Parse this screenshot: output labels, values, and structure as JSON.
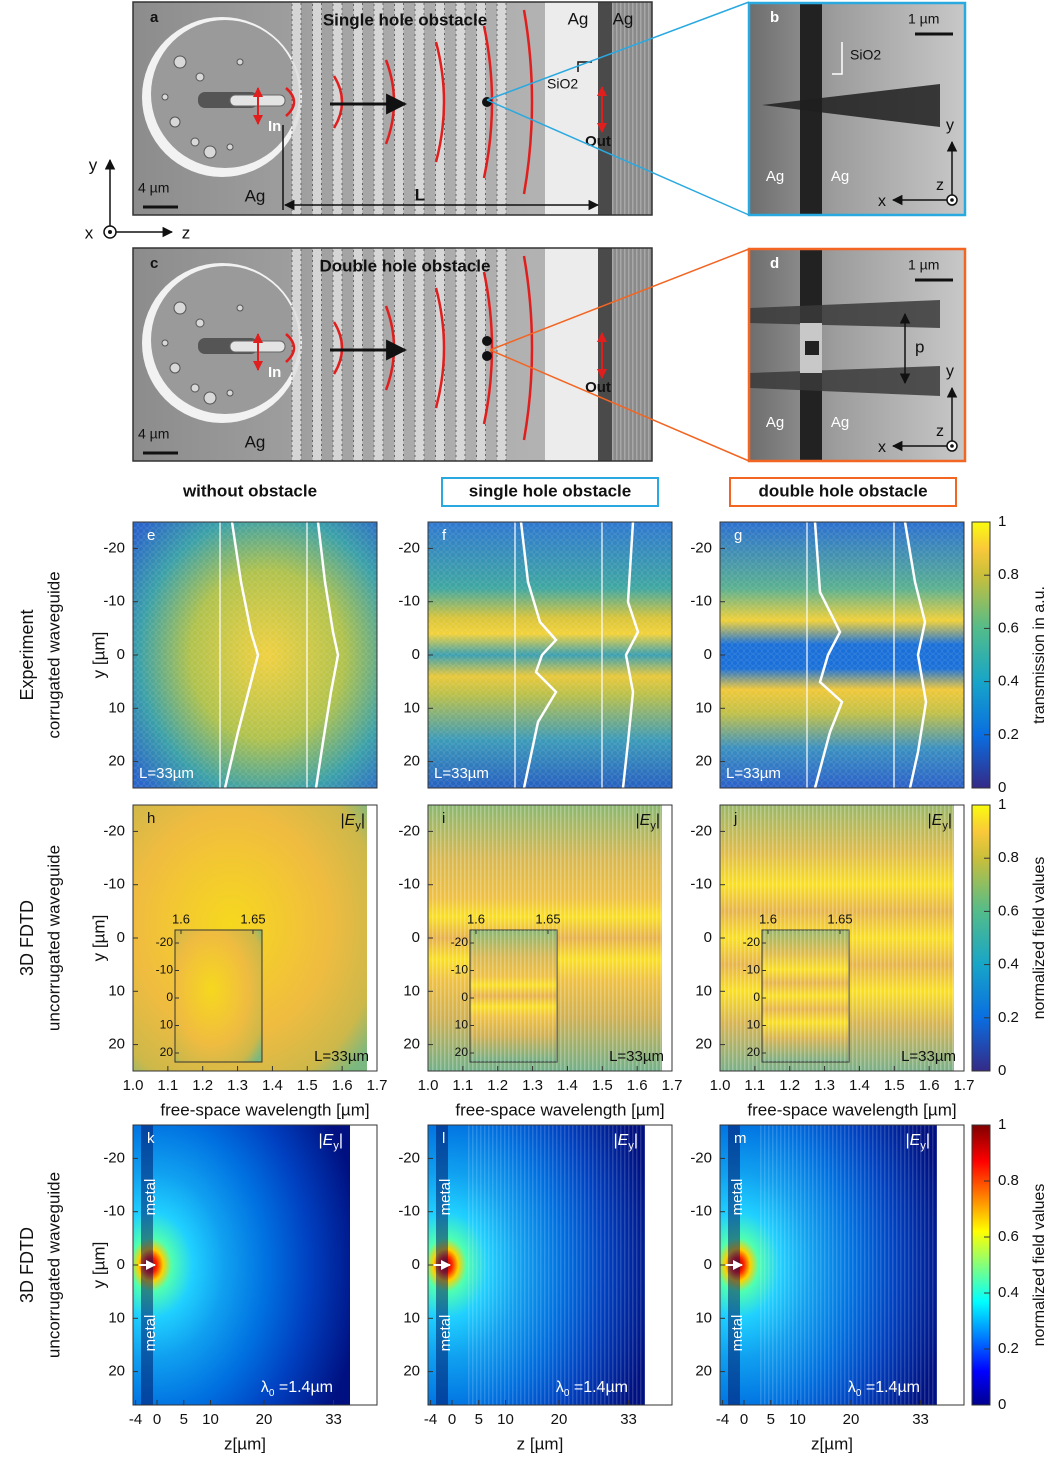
{
  "panels_top": {
    "a": {
      "label": "a",
      "title": "Single hole obstacle",
      "ag_left": "Ag",
      "ag_right": "Ag",
      "sio2": "SiO2",
      "in": "In",
      "out": "Out",
      "ag_bottom": "Ag",
      "length": "L",
      "scale": "4 µm"
    },
    "b": {
      "label": "b",
      "scale": "1 µm",
      "sio2": "SiO2",
      "ag_left": "Ag",
      "ag_right": "Ag",
      "axis_y": "y",
      "axis_z": "z",
      "axis_x": "x"
    },
    "c": {
      "label": "c",
      "title": "Double hole obstacle",
      "in": "In",
      "out": "Out",
      "ag_bottom": "Ag",
      "scale": "4 µm"
    },
    "d": {
      "label": "d",
      "scale": "1 µm",
      "period": "p",
      "ag_left": "Ag",
      "ag_right": "Ag",
      "axis_y": "y",
      "axis_z": "z",
      "axis_x": "x"
    }
  },
  "coordinate_axes": {
    "y": "y",
    "x": "x",
    "z": "z"
  },
  "column_titles": [
    "without obstacle",
    "single hole obstacle",
    "double hole obstacle"
  ],
  "rows": [
    {
      "title": "Experiment",
      "subtitle": "corrugated waveguide",
      "y_label": "y [µm]",
      "y_ticks": [
        -20,
        -10,
        0,
        10,
        20
      ],
      "panels": [
        {
          "label": "e",
          "length": "L=33µm"
        },
        {
          "label": "f",
          "length": "L=33µm"
        },
        {
          "label": "g",
          "length": "L=33µm"
        }
      ],
      "colorbar": {
        "label": "transmission in a.u.",
        "ticks": [
          0,
          0.2,
          0.4,
          0.6,
          0.8,
          1
        ]
      }
    },
    {
      "title": "3D FDTD",
      "subtitle": "uncorrugated waveguide",
      "y_label": "y [µm]",
      "y_ticks": [
        -20,
        -10,
        0,
        10,
        20
      ],
      "x_ticks": [
        {
          "value": 1,
          "label": "1.0"
        },
        1.1,
        1.2,
        1.3,
        1.4,
        1.5,
        1.6,
        1.7
      ],
      "inset": {
        "x_ticks": [
          1.6,
          1.65
        ],
        "y_ticks": [
          -20,
          -10,
          0,
          10,
          20
        ]
      },
      "panels": [
        {
          "label": "h",
          "field": [
            "|",
            "E",
            "y",
            "|"
          ],
          "length": "L=33µm",
          "x_label": "free-space wavelength [µm]"
        },
        {
          "label": "i",
          "field": [
            "|",
            "E",
            "y",
            "|"
          ],
          "length": "L=33µm",
          "x_label": "free-space wavelength [µm]"
        },
        {
          "label": "j",
          "field": [
            "|",
            "E",
            "y",
            "|"
          ],
          "length": "L=33µm",
          "x_label": "free-space wavelength [µm]"
        }
      ],
      "colorbar": {
        "label": "normalized field values",
        "ticks": [
          0,
          0.2,
          0.4,
          0.6,
          0.8,
          1
        ]
      }
    },
    {
      "title": "3D FDTD",
      "subtitle": "uncorrugated waveguide",
      "y_label": "y [µm]",
      "y_ticks": [
        -20,
        -10,
        0,
        10,
        20
      ],
      "x_ticks": [
        -4,
        0,
        5,
        10,
        20,
        33
      ],
      "panels": [
        {
          "label": "k",
          "field": [
            "|",
            "E",
            "y",
            "|"
          ],
          "metal": [
            "metal",
            "metal"
          ],
          "wavelength": [
            "λ",
            "0",
            " =1.4µm"
          ],
          "x_label": "z[µm]"
        },
        {
          "label": "l",
          "field": [
            "|",
            "E",
            "y",
            "|"
          ],
          "metal": [
            "metal",
            "metal"
          ],
          "wavelength": [
            "λ",
            "0",
            " =1.4µm"
          ],
          "x_label": "z [µm]"
        },
        {
          "label": "m",
          "field": [
            "|",
            "E",
            "y",
            "|"
          ],
          "metal": [
            "metal",
            "metal"
          ],
          "wavelength": [
            "λ",
            "0",
            " =1.4µm"
          ],
          "x_label": "z[µm]"
        }
      ],
      "colorbar": {
        "label": "normalized field values",
        "ticks": [
          0,
          0.2,
          0.4,
          0.6,
          0.8,
          1
        ]
      }
    }
  ]
}
